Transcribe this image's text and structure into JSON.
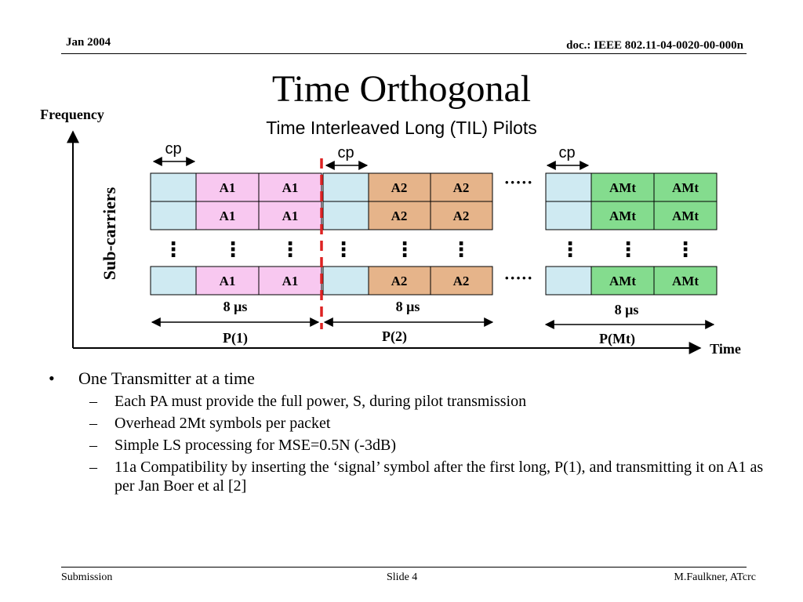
{
  "header": {
    "date": "Jan 2004",
    "doc": "doc.: IEEE 802.11-04-0020-00-000n"
  },
  "slide": {
    "title": "Time Orthogonal",
    "subtitle": "Time Interleaved Long (TIL)  Pilots"
  },
  "diagram": {
    "freq_axis_label": "Frequency",
    "time_axis_label": "Time",
    "subcarriers_label": "Sub-carriers",
    "cp_label": "cp",
    "ellipsis_h": "·····",
    "ellipsis_v": "⋮",
    "colors": {
      "cp_cell": "#cfeaf2",
      "a1_cell": "#f8c8f0",
      "a2_cell": "#e6b48a",
      "amt_cell": "#84dc8e",
      "divider": "#dd2222"
    },
    "groups": [
      {
        "symbol": "A1",
        "duration": "8 μs",
        "period": "P(1)"
      },
      {
        "symbol": "A2",
        "duration": "8 μs",
        "period": "P(2)"
      },
      {
        "symbol": "AMt",
        "duration": "8 μs",
        "period": "P(Mt)"
      }
    ]
  },
  "bullets": [
    {
      "text": "One Transmitter at a time",
      "mark": "•",
      "sub": [
        {
          "mark": "–",
          "text": "Each PA must provide the full power, S, during pilot transmission"
        },
        {
          "mark": "–",
          "text": "Overhead 2Mt symbols per packet"
        },
        {
          "mark": "–",
          "text": "Simple LS processing for MSE=0.5N  (-3dB)"
        },
        {
          "mark": "–",
          "text": "11a Compatibility by inserting the ‘signal’ symbol after the first long, P(1), and transmitting it on A1  as per Jan Boer et al [2]"
        }
      ]
    }
  ],
  "footer": {
    "left": "Submission",
    "center": "Slide 4",
    "right": "M.Faulkner, ATcrc"
  }
}
